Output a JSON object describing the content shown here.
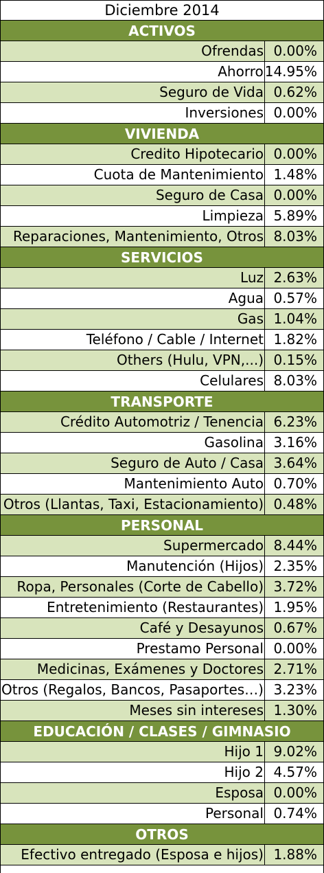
{
  "title": "Diciembre 2014",
  "sections": [
    {
      "name": "ACTIVOS",
      "items": [
        {
          "label": "Ofrendas",
          "value": "0.00%"
        },
        {
          "label": "Ahorro",
          "value": "14.95%"
        },
        {
          "label": "Seguro de Vida",
          "value": "0.62%"
        },
        {
          "label": "Inversiones",
          "value": "0.00%"
        }
      ]
    },
    {
      "name": "VIVIENDA",
      "items": [
        {
          "label": "Credito Hipotecario",
          "value": "0.00%"
        },
        {
          "label": "Cuota de Mantenimiento",
          "value": "1.48%"
        },
        {
          "label": "Seguro de Casa",
          "value": "0.00%"
        },
        {
          "label": "Limpieza",
          "value": "5.89%"
        },
        {
          "label": "Reparaciones, Mantenimiento, Otros",
          "value": "8.03%"
        }
      ]
    },
    {
      "name": "SERVICIOS",
      "items": [
        {
          "label": "Luz",
          "value": "2.63%"
        },
        {
          "label": "Agua",
          "value": "0.57%"
        },
        {
          "label": "Gas",
          "value": "1.04%"
        },
        {
          "label": "Teléfono / Cable / Internet",
          "value": "1.82%"
        },
        {
          "label": "Others (Hulu, VPN,...)",
          "value": "0.15%"
        },
        {
          "label": "Celulares",
          "value": "8.03%"
        }
      ]
    },
    {
      "name": "TRANSPORTE",
      "items": [
        {
          "label": "Crédito Automotriz / Tenencia",
          "value": "6.23%"
        },
        {
          "label": "Gasolina",
          "value": "3.16%"
        },
        {
          "label": "Seguro de Auto / Casa",
          "value": "3.64%"
        },
        {
          "label": "Mantenimiento Auto",
          "value": "0.70%"
        },
        {
          "label": "Otros (Llantas, Taxi, Estacionamiento)",
          "value": "0.48%"
        }
      ]
    },
    {
      "name": "PERSONAL",
      "items": [
        {
          "label": "Supermercado",
          "value": "8.44%"
        },
        {
          "label": "Manutención (Hijos)",
          "value": "2.35%"
        },
        {
          "label": "Ropa, Personales (Corte de Cabello)",
          "value": "3.72%"
        },
        {
          "label": "Entretenimiento (Restaurantes)",
          "value": "1.95%"
        },
        {
          "label": "Café y Desayunos",
          "value": "0.67%"
        },
        {
          "label": "Prestamo Personal",
          "value": "0.00%"
        },
        {
          "label": "Medicinas, Exámenes y Doctores",
          "value": "2.71%"
        },
        {
          "label": "Otros (Regalos, Bancos, Pasaportes…)",
          "value": "3.23%"
        },
        {
          "label": "Meses sin intereses",
          "value": "1.30%"
        }
      ]
    },
    {
      "name": "EDUCACIÓN / CLASES / GIMNASIO",
      "items": [
        {
          "label": "Hijo 1",
          "value": "9.02%"
        },
        {
          "label": "Hijo 2",
          "value": "4.57%"
        },
        {
          "label": "Esposa",
          "value": "0.00%"
        },
        {
          "label": "Personal",
          "value": "0.74%"
        }
      ]
    },
    {
      "name": "OTROS",
      "items": [
        {
          "label": "Efectivo entregado (Esposa e hijos)",
          "value": "1.88%"
        }
      ]
    }
  ],
  "colors": {
    "header": "#77933C",
    "shade": "#D8E4BC"
  }
}
